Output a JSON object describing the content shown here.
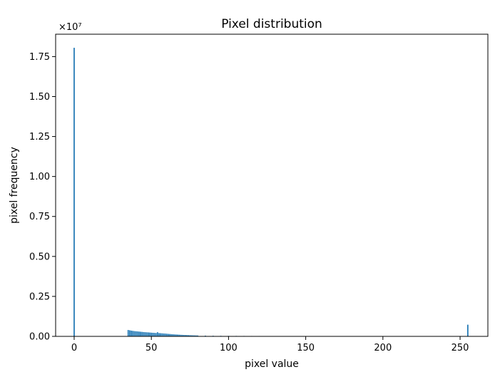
{
  "chart_data": {
    "type": "bar",
    "title": "Pixel distribution",
    "xlabel": "pixel value",
    "ylabel": "pixel frequency",
    "y_offset_text": "×10⁷",
    "x_ticks": [
      "0",
      "50",
      "100",
      "150",
      "200",
      "250"
    ],
    "y_ticks": [
      "0.00",
      "0.25",
      "0.50",
      "0.75",
      "1.00",
      "1.25",
      "1.50",
      "1.75"
    ],
    "xlim": [
      -12,
      268
    ],
    "ylim": [
      0,
      18900000
    ],
    "bar_color": "#1f77b4",
    "x": [
      0,
      35,
      36,
      37,
      38,
      39,
      40,
      41,
      42,
      43,
      44,
      45,
      46,
      47,
      48,
      49,
      50,
      51,
      52,
      53,
      54,
      55,
      56,
      57,
      58,
      59,
      60,
      61,
      62,
      63,
      64,
      65,
      66,
      67,
      68,
      69,
      70,
      71,
      72,
      73,
      74,
      75,
      76,
      77,
      78,
      79,
      80,
      85,
      90,
      95,
      100,
      105,
      110,
      115,
      120,
      125,
      130,
      135,
      140,
      145,
      150,
      155,
      160,
      165,
      170,
      175,
      180,
      185,
      190,
      195,
      200,
      205,
      210,
      215,
      220,
      225,
      230,
      235,
      240,
      245,
      250,
      255
    ],
    "values": [
      18050000,
      400000,
      380000,
      360000,
      345000,
      330000,
      320000,
      310000,
      300000,
      290000,
      280000,
      270000,
      262000,
      255000,
      248000,
      240000,
      232000,
      225000,
      218000,
      210000,
      260000,
      205000,
      198000,
      190000,
      182000,
      175000,
      165000,
      155000,
      148000,
      140000,
      132000,
      125000,
      118000,
      112000,
      106000,
      100000,
      95000,
      90000,
      86000,
      82000,
      78000,
      74000,
      70000,
      66000,
      62000,
      58000,
      55000,
      45000,
      38000,
      34000,
      30000,
      28000,
      26000,
      24000,
      23000,
      22000,
      21000,
      20000,
      20000,
      19000,
      19000,
      18000,
      18000,
      18000,
      17000,
      17000,
      17000,
      16000,
      16000,
      16000,
      15000,
      15000,
      15000,
      14000,
      14000,
      14000,
      14000,
      13000,
      13000,
      13000,
      13000,
      730000
    ],
    "grid": false
  }
}
